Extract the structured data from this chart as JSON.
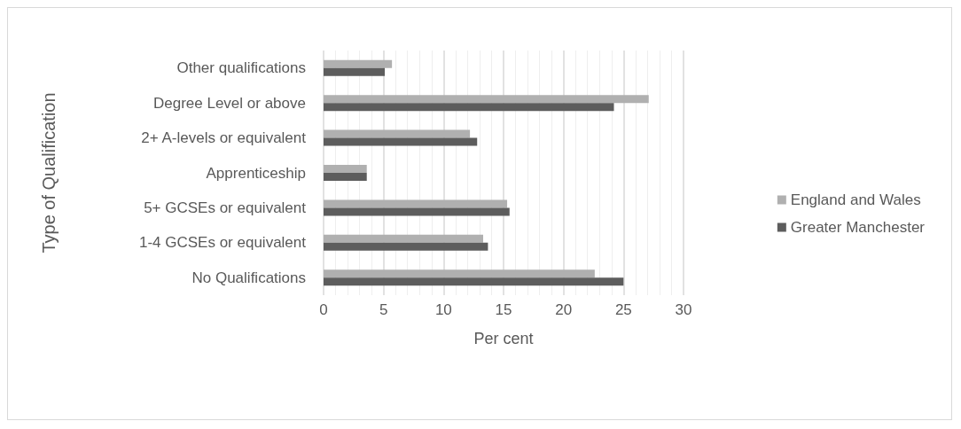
{
  "chart_data": {
    "type": "bar",
    "orientation": "horizontal",
    "xlabel": "Per cent",
    "ylabel": "Type of Qualification",
    "categories": [
      "Other qualifications",
      "Degree Level or above",
      "2+ A-levels or equivalent",
      "Apprenticeship",
      "5+ GCSEs or equivalent",
      "1-4 GCSEs or equivalent",
      "No Qualifications"
    ],
    "series": [
      {
        "name": "England and Wales",
        "color": "#b0b0b0",
        "values": [
          5.7,
          27.1,
          12.2,
          3.6,
          15.3,
          13.3,
          22.6
        ]
      },
      {
        "name": "Greater Manchester",
        "color": "#5d5d5d",
        "values": [
          5.1,
          24.2,
          12.8,
          3.6,
          15.5,
          13.7,
          25.0
        ]
      }
    ],
    "xlim": [
      0,
      30
    ],
    "xticks": [
      0,
      5,
      10,
      15,
      20,
      25,
      30
    ],
    "grid": "x",
    "legend": "right"
  }
}
